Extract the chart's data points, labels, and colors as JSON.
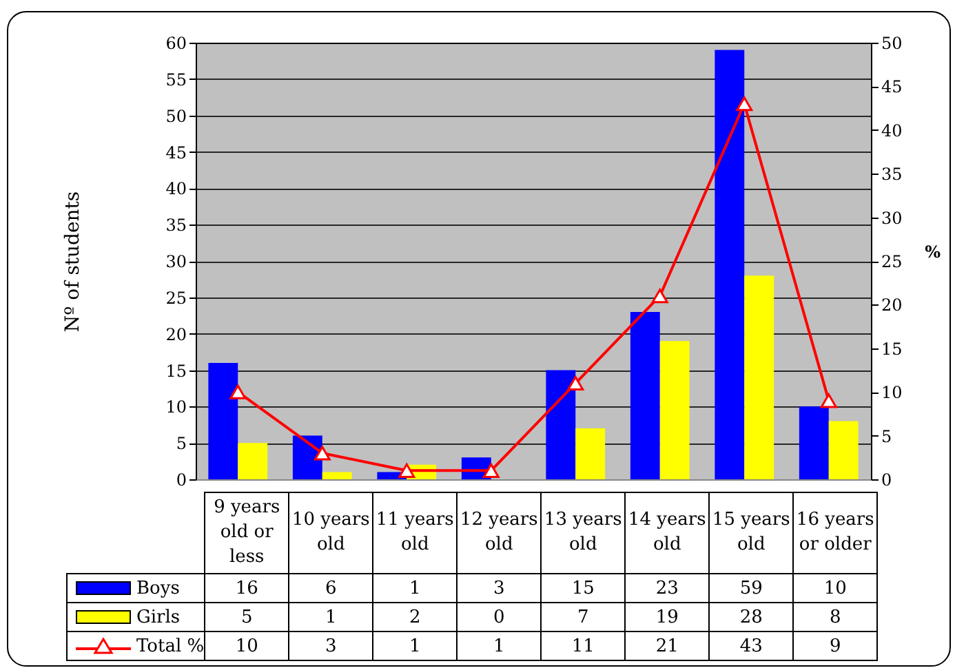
{
  "chart_data": {
    "type": "bar",
    "ylabel": "Nº of students",
    "y2label": "%",
    "categories": [
      "9 years old or less",
      "10 years old",
      "11 years old",
      "12 years old",
      "13 years old",
      "14 years old",
      "15 years old",
      "16 years or older"
    ],
    "series": [
      {
        "name": "Boys",
        "type": "bar",
        "color": "#0000ff",
        "values": [
          16,
          6,
          1,
          3,
          15,
          23,
          59,
          10
        ]
      },
      {
        "name": "Girls",
        "type": "bar",
        "color": "#ffff00",
        "values": [
          5,
          1,
          2,
          0,
          7,
          19,
          28,
          8
        ]
      },
      {
        "name": "Total %",
        "type": "line",
        "axis": "y2",
        "color": "#ff0000",
        "marker": "triangle",
        "values": [
          10,
          3,
          1,
          1,
          11,
          21,
          43,
          9
        ]
      }
    ],
    "ylim": [
      0,
      60
    ],
    "yticks": [
      0,
      5,
      10,
      15,
      20,
      25,
      30,
      35,
      40,
      45,
      50,
      55,
      60
    ],
    "y2lim": [
      0,
      50
    ],
    "y2ticks": [
      0,
      5,
      10,
      15,
      20,
      25,
      30,
      35,
      40,
      45,
      50
    ],
    "grid": "y",
    "legend": "bottom left",
    "data_labels": true
  }
}
